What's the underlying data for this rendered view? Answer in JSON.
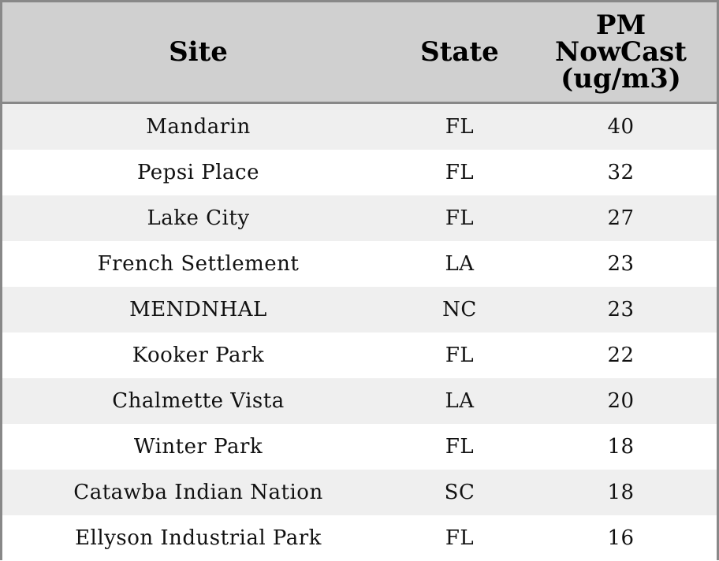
{
  "table": {
    "header": [
      "Site",
      "State",
      [
        "PM",
        "NowCast",
        "(ug/m3)"
      ]
    ],
    "rows": [
      [
        "Mandarin",
        "FL",
        40
      ],
      [
        "Pepsi Place",
        "FL",
        32
      ],
      [
        "Lake City",
        "FL",
        27
      ],
      [
        "French Settlement",
        "LA",
        23
      ],
      [
        "MENDNHAL",
        "NC",
        23
      ],
      [
        "Kooker Park",
        "FL",
        22
      ],
      [
        "Chalmette Vista",
        "LA",
        20
      ],
      [
        "Winter Park",
        "FL",
        18
      ],
      [
        "Catawba Indian Nation",
        "SC",
        18
      ],
      [
        "Ellyson Industrial Park",
        "FL",
        16
      ]
    ]
  }
}
